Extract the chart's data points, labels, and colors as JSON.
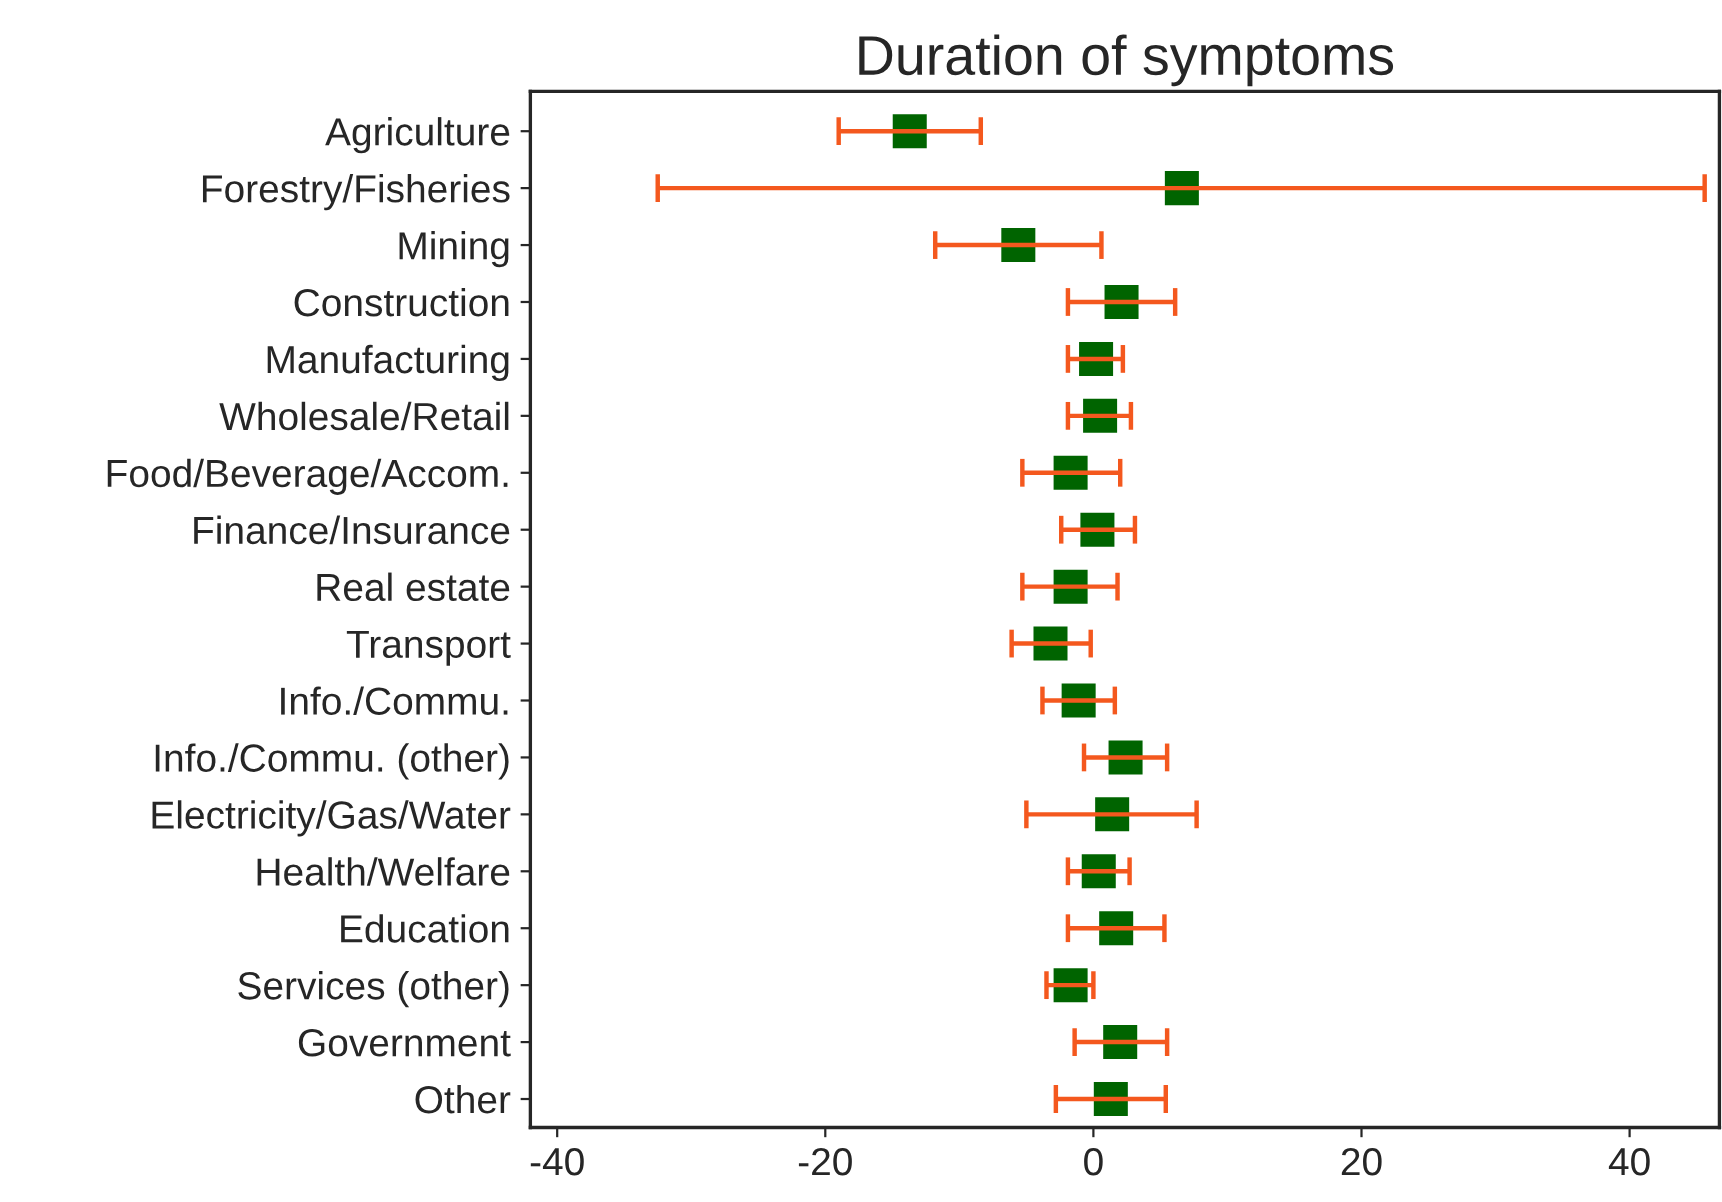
{
  "chart_data": {
    "type": "scatter",
    "title": "Duration of symptoms",
    "orientation": "horizontal",
    "categories": [
      "Agriculture",
      "Forestry/Fisheries",
      "Mining",
      "Construction",
      "Manufacturing",
      "Wholesale/Retail",
      "Food/Beverage/Accom.",
      "Finance/Insurance",
      "Real estate",
      "Transport",
      "Info./Commu.",
      "Info./Commu. (other)",
      "Electricity/Gas/Water",
      "Health/Welfare",
      "Education",
      "Services (other)",
      "Government",
      "Other"
    ],
    "series": [
      {
        "color": "#006400",
        "values": [
          -13.7,
          6.6,
          -5.6,
          2.1,
          0.2,
          0.5,
          -1.7,
          0.3,
          -1.7,
          -3.2,
          -1.1,
          2.4,
          1.4,
          0.4,
          1.7,
          -1.7,
          2.0,
          1.3
        ],
        "errors": [
          [
            -19.0,
            -8.4
          ],
          [
            -32.5,
            45.6
          ],
          [
            -11.8,
            0.6
          ],
          [
            -1.9,
            6.1
          ],
          [
            -1.9,
            2.2
          ],
          [
            -1.9,
            2.8
          ],
          [
            -5.3,
            2.0
          ],
          [
            -2.4,
            3.1
          ],
          [
            -5.3,
            1.8
          ],
          [
            -6.1,
            -0.2
          ],
          [
            -3.8,
            1.6
          ],
          [
            -0.7,
            5.5
          ],
          [
            -5.0,
            7.7
          ],
          [
            -1.9,
            2.7
          ],
          [
            -1.9,
            5.3
          ],
          [
            -3.5,
            0.0
          ],
          [
            -1.4,
            5.5
          ],
          [
            -2.8,
            5.4
          ]
        ]
      }
    ],
    "xlim": [
      -42,
      46.7
    ],
    "xticks": [
      -40,
      -20,
      0,
      20,
      40
    ],
    "marker": "square",
    "grid": false,
    "legend": false
  }
}
